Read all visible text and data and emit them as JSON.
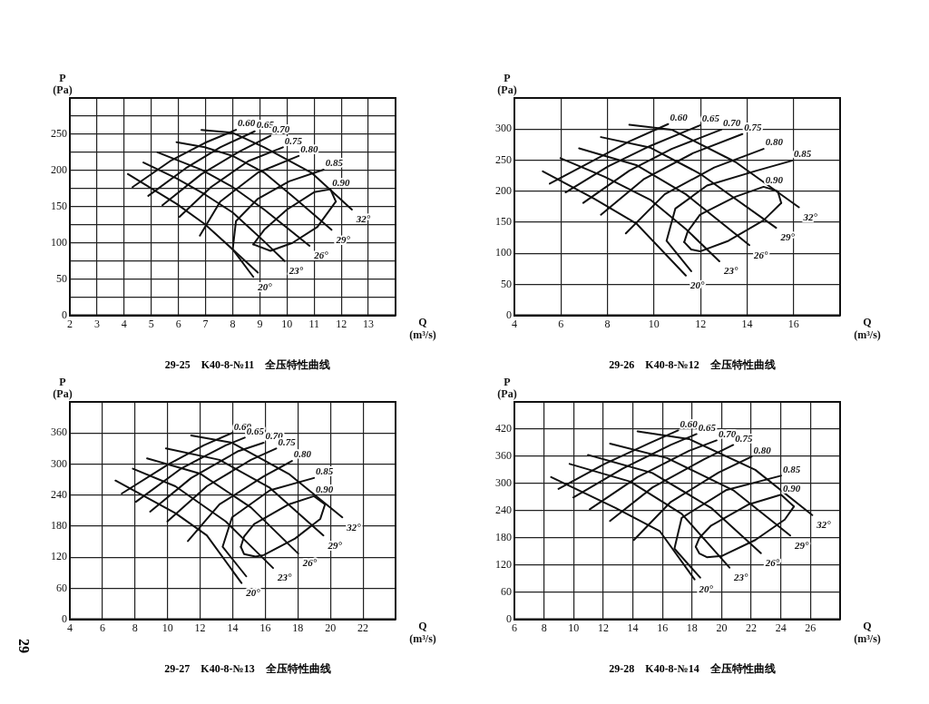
{
  "chart_data": [
    {
      "type": "line",
      "title": "29-25　K40-8-№11　全压特性曲线",
      "xlabel": "Q\n(m³/s)",
      "ylabel": "P\n(Pa)",
      "xlim": [
        2,
        14
      ],
      "xticks": [
        2,
        3,
        4,
        5,
        6,
        7,
        8,
        9,
        10,
        11,
        12,
        13,
        {
          "value": 14,
          "label": null
        }
      ],
      "ylim": [
        0,
        300
      ],
      "yticks": [
        0,
        {
          "value": 25,
          "label": null
        },
        50,
        {
          "value": 75,
          "label": null
        },
        100,
        {
          "value": 125,
          "label": null
        },
        150,
        {
          "value": 175,
          "label": null
        },
        200,
        {
          "value": 225,
          "label": null
        },
        250,
        {
          "value": 275,
          "label": null
        },
        {
          "value": 300,
          "label": null
        }
      ],
      "grid": true,
      "legend": false,
      "marker": "none",
      "line_style": "solid",
      "series": [
        {
          "name": "20°",
          "color": "#111111",
          "x": [
            4.14,
            5.93,
            6.97,
            8.0,
            8.76
          ],
          "values": [
            195,
            154,
            126,
            91,
            53
          ]
        },
        {
          "name": "23°",
          "color": "#111111",
          "x": [
            4.71,
            5.93,
            6.97,
            8.0,
            9.16,
            9.91
          ],
          "values": [
            211,
            189,
            167,
            142,
            102,
            75
          ]
        },
        {
          "name": "26°",
          "color": "#111111",
          "x": [
            5.23,
            6.85,
            8.0,
            9.16,
            10.83
          ],
          "values": [
            225,
            201,
            177,
            146,
            96
          ]
        },
        {
          "name": "29°",
          "color": "#111111",
          "x": [
            5.93,
            6.97,
            8.0,
            9.16,
            10.31,
            11.64
          ],
          "values": [
            239,
            232,
            220,
            197,
            161,
            118
          ]
        },
        {
          "name": "32°",
          "color": "#111111",
          "x": [
            6.85,
            8.0,
            9.16,
            10.9,
            12.39
          ],
          "values": [
            256,
            252,
            232,
            197,
            146
          ]
        },
        {
          "name": "0.60",
          "color": "#111111",
          "x": [
            4.31,
            5.7,
            6.97,
            8.12
          ],
          "values": [
            177,
            213,
            238,
            256
          ]
        },
        {
          "name": "0.65",
          "color": "#111111",
          "x": [
            4.89,
            6.27,
            7.54,
            8.81
          ],
          "values": [
            165,
            203,
            232,
            254
          ]
        },
        {
          "name": "0.70",
          "color": "#111111",
          "x": [
            5.41,
            6.85,
            8.24,
            9.39
          ],
          "values": [
            152,
            195,
            226,
            248
          ]
        },
        {
          "name": "0.75",
          "color": "#111111",
          "x": [
            6.04,
            7.2,
            8.58,
            9.85
          ],
          "values": [
            136,
            177,
            213,
            232
          ]
        },
        {
          "name": "0.80",
          "color": "#111111",
          "x": [
            6.79,
            7.54,
            8.93,
            10.43
          ],
          "values": [
            110,
            157,
            197,
            220
          ]
        },
        {
          "name": "0.85",
          "color": "#111111",
          "x": [
            8.93,
            8.0,
            8.12,
            8.93,
            10.08,
            11.35
          ],
          "values": [
            59,
            91,
            130,
            161,
            185,
            201
          ]
        },
        {
          "name": "0.90",
          "color": "#111111",
          "x": [
            8.76,
            9.16,
            10.0,
            11.0,
            11.6,
            11.8
          ],
          "values": [
            98,
            118,
            146,
            170,
            174,
            157
          ]
        },
        {
          "color": "#111111",
          "x": [
            8.76,
            9.39,
            10.2,
            11.12,
            11.8
          ],
          "values": [
            98,
            89,
            100,
            122,
            157
          ]
        }
      ]
    },
    {
      "type": "line",
      "title": "29-26　K40-8-№12　全压特性曲线",
      "xlabel": "Q\n(m³/s)",
      "ylabel": "P\n(Pa)",
      "xlim": [
        4,
        18
      ],
      "xticks": [
        4,
        6,
        8,
        10,
        12,
        14,
        16,
        {
          "value": 18,
          "label": null
        }
      ],
      "ylim": [
        0,
        350
      ],
      "yticks": [
        0,
        50,
        100,
        150,
        200,
        250,
        300,
        {
          "value": 350,
          "label": null
        }
      ],
      "grid": true,
      "legend": false,
      "marker": "none",
      "line_style": "solid",
      "series": [
        {
          "name": "20°",
          "color": "#111111",
          "x": [
            5.22,
            7.42,
            9.24,
            11.37
          ],
          "values": [
            232,
            188,
            148,
            64
          ]
        },
        {
          "name": "23°",
          "color": "#111111",
          "x": [
            5.98,
            7.88,
            9.85,
            11.37,
            12.81
          ],
          "values": [
            253,
            223,
            186,
            139,
            87
          ]
        },
        {
          "name": "26°",
          "color": "#111111",
          "x": [
            6.78,
            9.24,
            11.37,
            14.1
          ],
          "values": [
            269,
            242,
            195,
            113
          ]
        },
        {
          "name": "29°",
          "color": "#111111",
          "x": [
            7.72,
            9.85,
            11.98,
            15.25
          ],
          "values": [
            287,
            270,
            228,
            141
          ]
        },
        {
          "name": "32°",
          "color": "#111111",
          "x": [
            8.94,
            10.76,
            13.5,
            16.23
          ],
          "values": [
            307,
            299,
            247,
            174
          ]
        },
        {
          "name": "0.60",
          "color": "#111111",
          "x": [
            5.52,
            7.27,
            8.94,
            10.61
          ],
          "values": [
            212,
            247,
            280,
            308
          ]
        },
        {
          "name": "0.65",
          "color": "#111111",
          "x": [
            6.2,
            8.03,
            9.85,
            11.98
          ],
          "values": [
            198,
            240,
            273,
            306
          ]
        },
        {
          "name": "0.70",
          "color": "#111111",
          "x": [
            6.96,
            8.94,
            10.76,
            12.89
          ],
          "values": [
            181,
            233,
            268,
            299
          ]
        },
        {
          "name": "0.75",
          "color": "#111111",
          "x": [
            7.72,
            9.55,
            11.67,
            13.8
          ],
          "values": [
            162,
            219,
            261,
            292
          ]
        },
        {
          "name": "0.80",
          "color": "#111111",
          "x": [
            8.79,
            10.46,
            12.59,
            14.71
          ],
          "values": [
            132,
            195,
            238,
            268
          ]
        },
        {
          "name": "0.85",
          "color": "#111111",
          "x": [
            11.6,
            10.54,
            10.92,
            12.28,
            14.41,
            15.93
          ],
          "values": [
            71,
            120,
            172,
            209,
            233,
            249
          ]
        },
        {
          "name": "0.90",
          "color": "#111111",
          "x": [
            11.3,
            11.45,
            11.98,
            13.5,
            14.71,
            15.32,
            15.47
          ],
          "values": [
            118,
            135,
            162,
            191,
            207,
            200,
            181
          ]
        },
        {
          "color": "#111111",
          "x": [
            11.3,
            11.6,
            11.98,
            13.2,
            14.71,
            15.47
          ],
          "values": [
            118,
            106,
            103,
            120,
            153,
            181
          ]
        }
      ]
    },
    {
      "type": "line",
      "title": "29-27　K40-8-№13　全压特性曲线",
      "xlabel": "Q\n(m³/s)",
      "ylabel": "P\n(Pa)",
      "xlim": [
        4,
        24
      ],
      "xticks": [
        4,
        6,
        8,
        10,
        12,
        14,
        16,
        18,
        20,
        22,
        {
          "value": 24,
          "label": null
        }
      ],
      "ylim": [
        0,
        420
      ],
      "yticks": [
        0,
        60,
        120,
        180,
        240,
        300,
        360,
        {
          "value": 420,
          "label": null
        }
      ],
      "grid": true,
      "legend": false,
      "marker": "none",
      "line_style": "solid",
      "annotations": [
        "29"
      ],
      "series": [
        {
          "name": "20°",
          "color": "#111111",
          "x": [
            6.8,
            10.48,
            12.41,
            14.54
          ],
          "values": [
            268,
            205,
            162,
            70
          ]
        },
        {
          "name": "23°",
          "color": "#111111",
          "x": [
            7.87,
            10.48,
            13.57,
            16.48
          ],
          "values": [
            291,
            257,
            189,
            99
          ]
        },
        {
          "name": "26°",
          "color": "#111111",
          "x": [
            8.74,
            12.03,
            15.12,
            18.02
          ],
          "values": [
            311,
            281,
            216,
            127
          ]
        },
        {
          "name": "29°",
          "color": "#111111",
          "x": [
            9.9,
            13.19,
            16.28,
            19.57
          ],
          "values": [
            330,
            308,
            254,
            162
          ]
        },
        {
          "name": "32°",
          "color": "#111111",
          "x": [
            11.45,
            13.96,
            17.44,
            20.73
          ],
          "values": [
            355,
            341,
            281,
            197
          ]
        },
        {
          "name": "0.60",
          "color": "#111111",
          "x": [
            7.19,
            10.09,
            12.22,
            13.96
          ],
          "values": [
            243,
            300,
            336,
            360
          ]
        },
        {
          "name": "0.65",
          "color": "#111111",
          "x": [
            8.06,
            10.87,
            13.57,
            14.74
          ],
          "values": [
            227,
            292,
            336,
            351
          ]
        },
        {
          "name": "0.70",
          "color": "#111111",
          "x": [
            8.93,
            11.45,
            14.35,
            15.9
          ],
          "values": [
            208,
            273,
            325,
            341
          ]
        },
        {
          "name": "0.75",
          "color": "#111111",
          "x": [
            9.99,
            12.41,
            15.12,
            16.67
          ],
          "values": [
            189,
            257,
            308,
            330
          ]
        },
        {
          "name": "0.80",
          "color": "#111111",
          "x": [
            11.25,
            13.19,
            15.9,
            17.64
          ],
          "values": [
            151,
            222,
            276,
            306
          ]
        },
        {
          "name": "0.85",
          "color": "#111111",
          "x": [
            14.83,
            13.38,
            13.96,
            16.28,
            18.99
          ],
          "values": [
            83,
            140,
            197,
            249,
            273
          ]
        },
        {
          "name": "0.90",
          "color": "#111111",
          "x": [
            14.5,
            14.7,
            15.32,
            17.44,
            18.99,
            19.67
          ],
          "values": [
            140,
            160,
            184,
            222,
            238,
            222
          ]
        },
        {
          "color": "#111111",
          "x": [
            14.5,
            14.7,
            15.4,
            15.9,
            17.83,
            19.38,
            19.67
          ],
          "values": [
            140,
            126,
            121,
            124,
            156,
            194,
            222
          ]
        }
      ]
    },
    {
      "type": "line",
      "title": "29-28　K40-8-№14　全压特性曲线",
      "xlabel": "Q\n(m³/s)",
      "ylabel": "P\n(Pa)",
      "xlim": [
        6,
        28
      ],
      "xticks": [
        6,
        8,
        10,
        12,
        14,
        16,
        18,
        20,
        22,
        24,
        26,
        {
          "value": 28,
          "label": null
        }
      ],
      "ylim": [
        0,
        480
      ],
      "yticks": [
        0,
        60,
        120,
        180,
        240,
        300,
        360,
        420,
        {
          "value": 480,
          "label": null
        }
      ],
      "grid": true,
      "legend": false,
      "marker": "none",
      "line_style": "solid",
      "series": [
        {
          "name": "20°",
          "color": "#111111",
          "x": [
            8.48,
            12.83,
            15.81,
            18.17
          ],
          "values": [
            314,
            246,
            195,
            88
          ]
        },
        {
          "name": "23°",
          "color": "#111111",
          "x": [
            9.73,
            13.83,
            17.3,
            20.53
          ],
          "values": [
            343,
            304,
            233,
            114
          ]
        },
        {
          "name": "26°",
          "color": "#111111",
          "x": [
            10.97,
            15.32,
            19.29,
            22.65
          ],
          "values": [
            363,
            323,
            246,
            146
          ]
        },
        {
          "name": "29°",
          "color": "#111111",
          "x": [
            12.46,
            16.31,
            20.78,
            24.63
          ],
          "values": [
            388,
            356,
            285,
            185
          ]
        },
        {
          "name": "32°",
          "color": "#111111",
          "x": [
            14.32,
            17.8,
            22.27,
            26.12
          ],
          "values": [
            415,
            398,
            330,
            230
          ]
        },
        {
          "name": "0.60",
          "color": "#111111",
          "x": [
            8.98,
            12.09,
            15.07,
            17.06
          ],
          "values": [
            288,
            343,
            388,
            417
          ]
        },
        {
          "name": "0.65",
          "color": "#111111",
          "x": [
            9.98,
            13.33,
            16.56,
            18.3
          ],
          "values": [
            269,
            333,
            385,
            409
          ]
        },
        {
          "name": "0.70",
          "color": "#111111",
          "x": [
            11.09,
            14.32,
            17.8,
            19.66
          ],
          "values": [
            243,
            314,
            372,
            395
          ]
        },
        {
          "name": "0.75",
          "color": "#111111",
          "x": [
            12.46,
            15.32,
            18.8,
            20.78
          ],
          "values": [
            217,
            291,
            353,
            385
          ]
        },
        {
          "name": "0.80",
          "color": "#111111",
          "x": [
            14.07,
            16.56,
            19.79,
            22.02
          ],
          "values": [
            175,
            259,
            324,
            359
          ]
        },
        {
          "name": "0.85",
          "color": "#111111",
          "x": [
            18.55,
            16.81,
            17.3,
            20.29,
            24.01
          ],
          "values": [
            92,
            156,
            224,
            285,
            317
          ]
        },
        {
          "name": "0.90",
          "color": "#111111",
          "x": [
            18.25,
            18.5,
            19.29,
            21.78,
            24.01,
            24.88
          ],
          "values": [
            160,
            180,
            207,
            253,
            275,
            249
          ]
        },
        {
          "color": "#111111",
          "x": [
            18.25,
            18.5,
            19.0,
            20.04,
            22.27,
            24.26,
            24.88
          ],
          "values": [
            160,
            145,
            137,
            140,
            175,
            220,
            249
          ]
        }
      ]
    }
  ]
}
